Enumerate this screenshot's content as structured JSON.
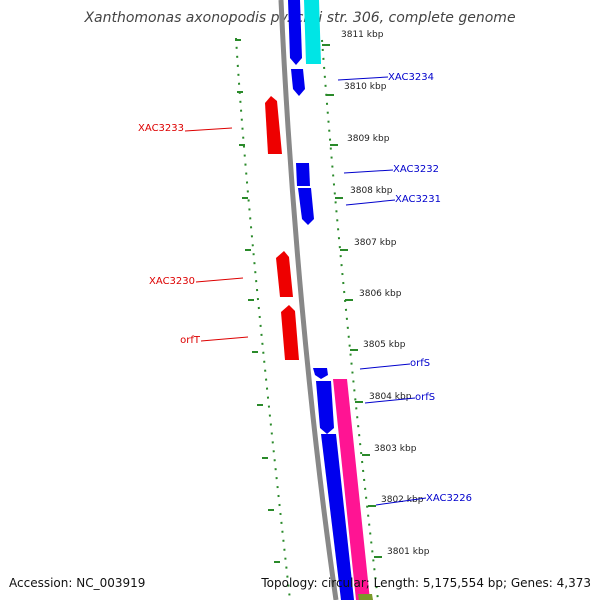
{
  "title": "Xanthomonas axonopodis pv. citri str. 306, complete genome",
  "footer": {
    "accession": "Accession: NC_003919",
    "topology": "Topology: circular; Length: 5,175,554 bp; Genes: 4,373"
  },
  "colors": {
    "forward_gene": "#0000ee",
    "reverse_gene": "#ee0000",
    "cyan_feature": "#00e5e5",
    "pink_feature": "#ff1493",
    "backbone": "#888888",
    "dotted_track": "#2a8a2a",
    "forward_label": "#0000cc",
    "reverse_label": "#dd0000"
  },
  "kbp_ticks": [
    "3811 kbp",
    "3810 kbp",
    "3809 kbp",
    "3808 kbp",
    "3807 kbp",
    "3806 kbp",
    "3805 kbp",
    "3804 kbp",
    "3803 kbp",
    "3802 kbp",
    "3801 kbp"
  ],
  "forward_labels": [
    "XAC3234",
    "XAC3232",
    "XAC3231",
    "orfS",
    "orfS",
    "XAC3226"
  ],
  "reverse_labels": [
    "XAC3233",
    "XAC3230",
    "orfT"
  ]
}
